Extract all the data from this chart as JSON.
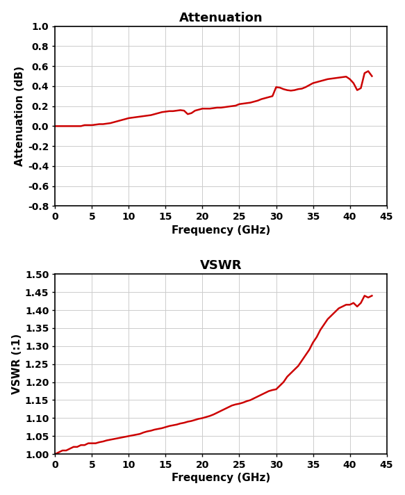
{
  "title1": "Attenuation",
  "title2": "VSWR",
  "xlabel": "Frequency (GHz)",
  "ylabel1": "Attenuation (dB)",
  "ylabel2": "VSWR (:1)",
  "line_color": "#cc0000",
  "line_width": 1.8,
  "background_color": "#ffffff",
  "grid_color": "#cccccc",
  "xlim": [
    0,
    45
  ],
  "xticks": [
    0,
    5,
    10,
    15,
    20,
    25,
    30,
    35,
    40,
    45
  ],
  "ylim1": [
    -0.8,
    1.0
  ],
  "yticks1": [
    -0.8,
    -0.6,
    -0.4,
    -0.2,
    0.0,
    0.2,
    0.4,
    0.6,
    0.8,
    1.0
  ],
  "ylim2": [
    1.0,
    1.5
  ],
  "yticks2": [
    1.0,
    1.05,
    1.1,
    1.15,
    1.2,
    1.25,
    1.3,
    1.35,
    1.4,
    1.45,
    1.5
  ],
  "atten_freq": [
    0,
    0.5,
    1,
    1.5,
    2,
    2.5,
    3,
    3.5,
    4,
    4.5,
    5,
    5.5,
    6,
    6.5,
    7,
    7.5,
    8,
    8.5,
    9,
    9.5,
    10,
    10.5,
    11,
    11.5,
    12,
    12.5,
    13,
    13.5,
    14,
    14.5,
    15,
    15.5,
    16,
    16.5,
    17,
    17.5,
    18,
    18.5,
    19,
    19.5,
    20,
    20.5,
    21,
    21.5,
    22,
    22.5,
    23,
    23.5,
    24,
    24.5,
    25,
    25.5,
    26,
    26.5,
    27,
    27.5,
    28,
    28.5,
    29,
    29.5,
    30,
    30.5,
    31,
    31.5,
    32,
    32.5,
    33,
    33.5,
    34,
    34.5,
    35,
    35.5,
    36,
    36.5,
    37,
    37.5,
    38,
    38.5,
    39,
    39.5,
    40,
    40.5,
    41,
    41.5,
    42,
    42.5,
    43
  ],
  "atten_vals": [
    0.0,
    0.0,
    0.0,
    0.0,
    0.0,
    0.0,
    0.0,
    0.0,
    0.01,
    0.01,
    0.01,
    0.015,
    0.02,
    0.02,
    0.025,
    0.03,
    0.04,
    0.05,
    0.06,
    0.07,
    0.08,
    0.085,
    0.09,
    0.095,
    0.1,
    0.105,
    0.11,
    0.12,
    0.13,
    0.14,
    0.145,
    0.15,
    0.15,
    0.155,
    0.16,
    0.155,
    0.12,
    0.13,
    0.155,
    0.165,
    0.175,
    0.175,
    0.175,
    0.18,
    0.185,
    0.185,
    0.19,
    0.195,
    0.2,
    0.205,
    0.22,
    0.225,
    0.23,
    0.235,
    0.245,
    0.255,
    0.27,
    0.28,
    0.29,
    0.3,
    0.39,
    0.385,
    0.37,
    0.36,
    0.355,
    0.36,
    0.37,
    0.375,
    0.39,
    0.41,
    0.43,
    0.44,
    0.45,
    0.46,
    0.47,
    0.475,
    0.48,
    0.485,
    0.49,
    0.495,
    0.47,
    0.43,
    0.36,
    0.38,
    0.53,
    0.55,
    0.5
  ],
  "vswr_freq": [
    0,
    0.5,
    1,
    1.5,
    2,
    2.5,
    3,
    3.5,
    4,
    4.5,
    5,
    5.5,
    6,
    6.5,
    7,
    7.5,
    8,
    8.5,
    9,
    9.5,
    10,
    10.5,
    11,
    11.5,
    12,
    12.5,
    13,
    13.5,
    14,
    14.5,
    15,
    15.5,
    16,
    16.5,
    17,
    17.5,
    18,
    18.5,
    19,
    19.5,
    20,
    20.5,
    21,
    21.5,
    22,
    22.5,
    23,
    23.5,
    24,
    24.5,
    25,
    25.5,
    26,
    26.5,
    27,
    27.5,
    28,
    28.5,
    29,
    29.5,
    30,
    30.5,
    31,
    31.5,
    32,
    32.5,
    33,
    33.5,
    34,
    34.5,
    35,
    35.5,
    36,
    36.5,
    37,
    37.5,
    38,
    38.5,
    39,
    39.5,
    40,
    40.5,
    41,
    41.5,
    42,
    42.5,
    43
  ],
  "vswr_vals": [
    1.0,
    1.005,
    1.01,
    1.01,
    1.015,
    1.02,
    1.02,
    1.025,
    1.025,
    1.03,
    1.03,
    1.03,
    1.033,
    1.035,
    1.038,
    1.04,
    1.042,
    1.044,
    1.046,
    1.048,
    1.05,
    1.052,
    1.054,
    1.056,
    1.06,
    1.063,
    1.065,
    1.068,
    1.07,
    1.072,
    1.075,
    1.078,
    1.08,
    1.082,
    1.085,
    1.087,
    1.09,
    1.092,
    1.095,
    1.098,
    1.1,
    1.103,
    1.106,
    1.11,
    1.115,
    1.12,
    1.125,
    1.13,
    1.135,
    1.138,
    1.14,
    1.143,
    1.147,
    1.15,
    1.155,
    1.16,
    1.165,
    1.17,
    1.175,
    1.178,
    1.18,
    1.19,
    1.2,
    1.215,
    1.225,
    1.235,
    1.245,
    1.26,
    1.275,
    1.29,
    1.31,
    1.325,
    1.345,
    1.36,
    1.375,
    1.385,
    1.395,
    1.405,
    1.41,
    1.415,
    1.415,
    1.42,
    1.41,
    1.42,
    1.44,
    1.435,
    1.44
  ]
}
